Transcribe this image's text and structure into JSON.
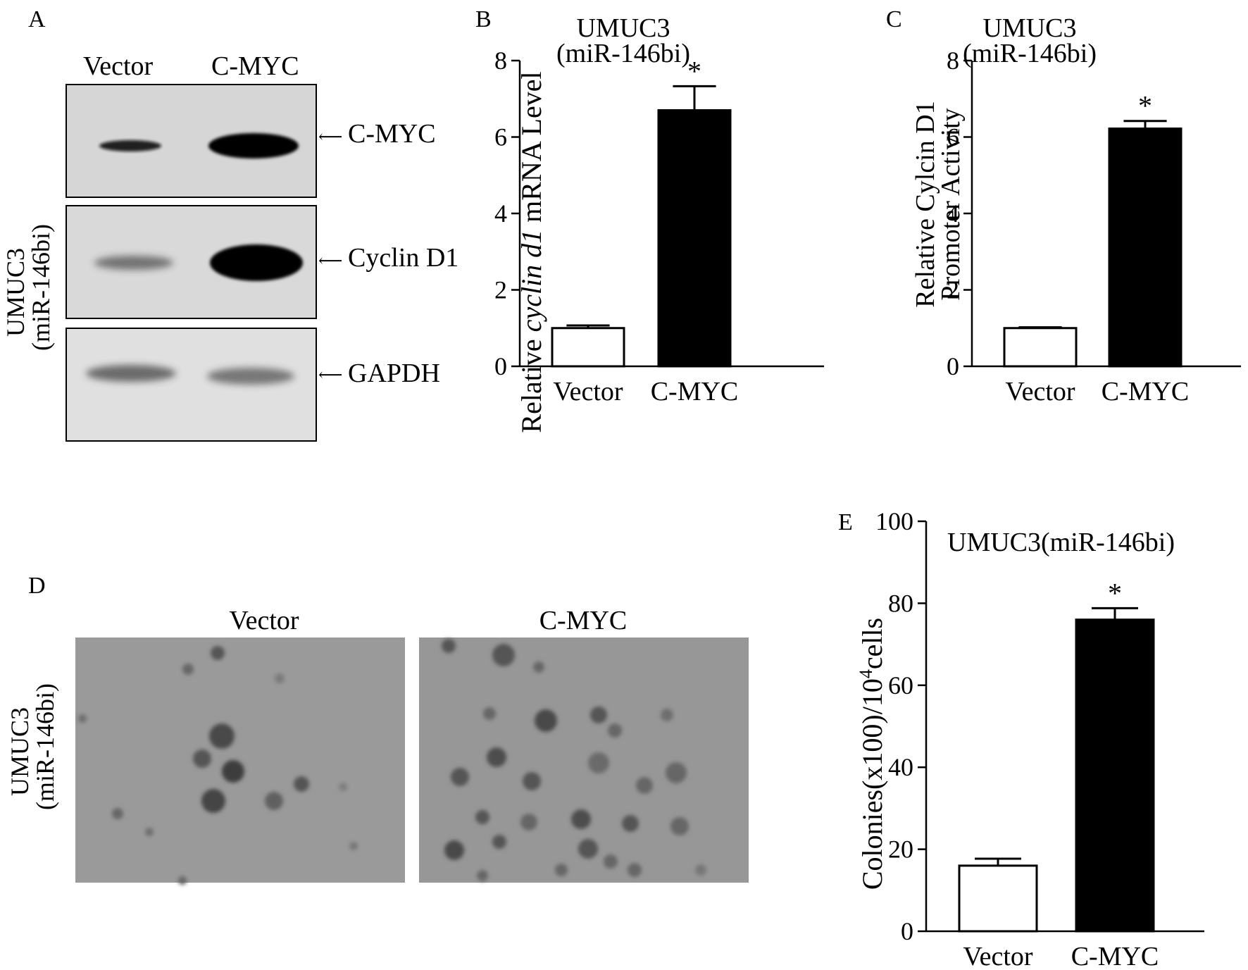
{
  "panels": {
    "A": {
      "letter": "A",
      "side_label_line1": "UMUC3",
      "side_label_line2": "(miR-146bi)",
      "lanes": [
        "Vector",
        "C-MYC"
      ],
      "blots": [
        {
          "label": "C-MYC",
          "band_intensity": [
            0.85,
            1.0
          ]
        },
        {
          "label": "Cyclin D1",
          "band_intensity": [
            0.45,
            1.0
          ]
        },
        {
          "label": "GAPDH",
          "band_intensity": [
            0.55,
            0.5
          ]
        }
      ]
    },
    "D": {
      "letter": "D",
      "side_label_line1": "UMUC3",
      "side_label_line2": "(miR-146bi)",
      "images": [
        "Vector",
        "C-MYC"
      ]
    }
  },
  "chart_data": [
    {
      "panel": "B",
      "type": "bar",
      "title_line1": "UMUC3",
      "title_line2": "(miR-146bi)",
      "ylabel_part1": "Relative ",
      "ylabel_italic": "cyclin d1",
      "ylabel_part2": "  mRNA Level",
      "categories": [
        "Vector",
        "C-MYC"
      ],
      "values": [
        1.0,
        6.7
      ],
      "errors": [
        0.07,
        0.63
      ],
      "significance": [
        "",
        "*"
      ],
      "bar_fill": [
        "#ffffff",
        "#000000"
      ],
      "ylim": [
        0,
        8
      ],
      "yticks": [
        0,
        2,
        4,
        6,
        8
      ],
      "grid": false
    },
    {
      "panel": "C",
      "type": "bar",
      "title_line1": "UMUC3",
      "title_line2": "(miR-146bi)",
      "ylabel_line1": "Relative  Cylcin D1",
      "ylabel_line2": "Promoter Activity",
      "categories": [
        "Vector",
        "C-MYC"
      ],
      "values": [
        1.0,
        6.22
      ],
      "errors": [
        0.02,
        0.2
      ],
      "significance": [
        "",
        "*"
      ],
      "bar_fill": [
        "#ffffff",
        "#000000"
      ],
      "ylim": [
        0,
        8
      ],
      "yticks": [
        0,
        2,
        4,
        6,
        8
      ],
      "grid": false
    },
    {
      "panel": "E",
      "type": "bar",
      "title": "UMUC3(miR-146bi)",
      "ylabel_part1": "Colonies(x100)/10",
      "ylabel_sup": "4",
      "ylabel_part2": "cells",
      "categories": [
        "Vector",
        "C-MYC"
      ],
      "values": [
        16,
        76
      ],
      "errors": [
        1.7,
        2.8
      ],
      "significance": [
        "",
        "*"
      ],
      "bar_fill": [
        "#ffffff",
        "#000000"
      ],
      "ylim": [
        0,
        100
      ],
      "yticks": [
        0,
        20,
        40,
        60,
        80,
        100
      ],
      "grid": false
    }
  ]
}
